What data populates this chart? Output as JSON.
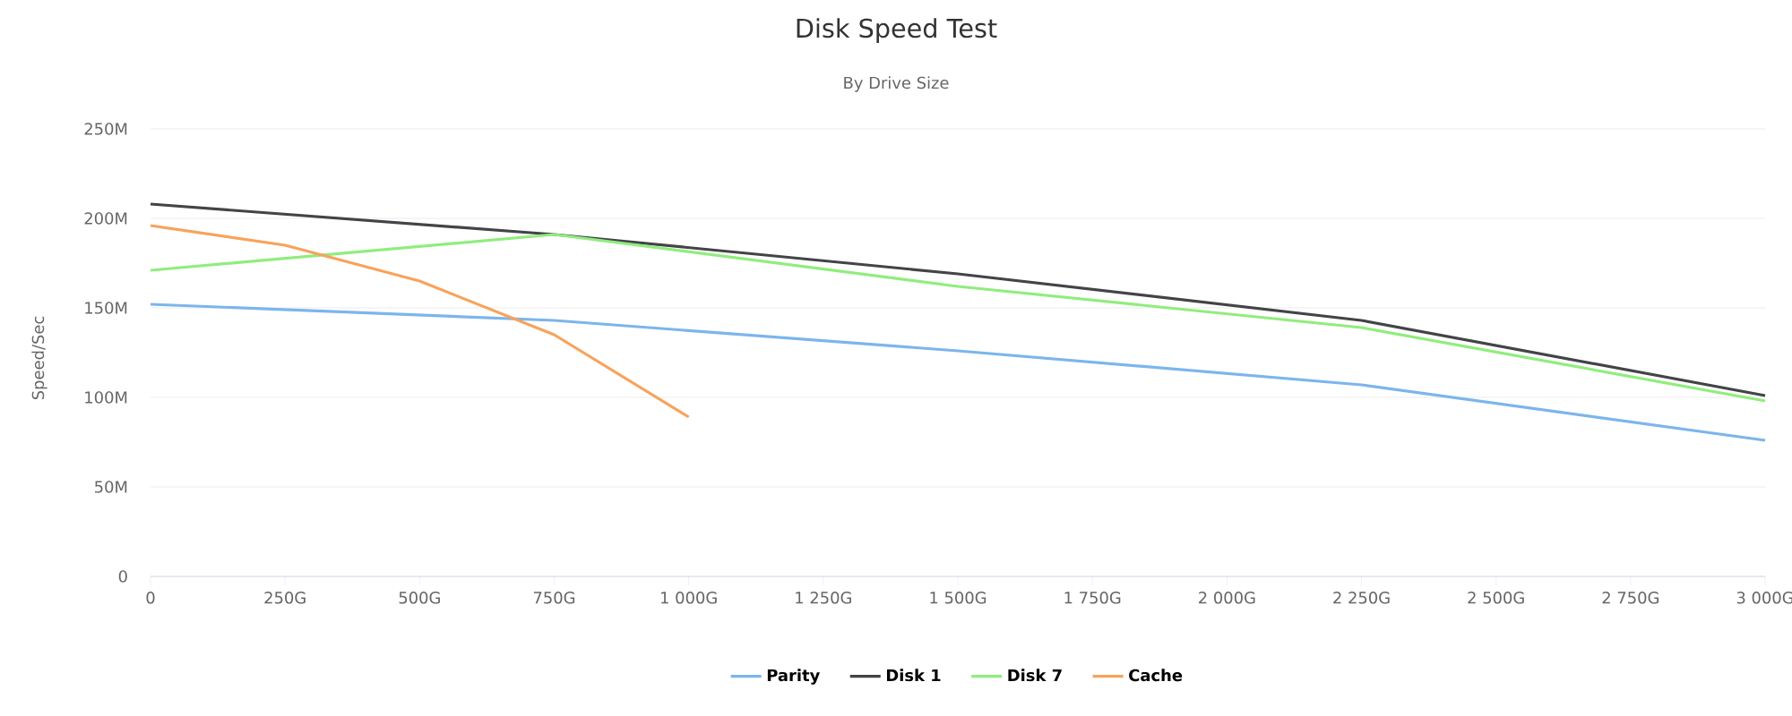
{
  "chart_data": {
    "type": "line",
    "title": "Disk Speed Test",
    "subtitle": "By Drive Size",
    "ylabel": "Speed/Sec",
    "xlim": [
      0,
      3000
    ],
    "xticks": [
      {
        "value": 0,
        "label": "0"
      },
      {
        "value": 250,
        "label": "250G"
      },
      {
        "value": 500,
        "label": "500G"
      },
      {
        "value": 750,
        "label": "750G"
      },
      {
        "value": 1000,
        "label": "1 000G"
      },
      {
        "value": 1250,
        "label": "1 250G"
      },
      {
        "value": 1500,
        "label": "1 500G"
      },
      {
        "value": 1750,
        "label": "1 750G"
      },
      {
        "value": 2000,
        "label": "2 000G"
      },
      {
        "value": 2250,
        "label": "2 250G"
      },
      {
        "value": 2500,
        "label": "2 500G"
      },
      {
        "value": 2750,
        "label": "2 750G"
      },
      {
        "value": 3000,
        "label": "3 000G"
      }
    ],
    "ylim": [
      0,
      250
    ],
    "yticks": [
      {
        "value": 0,
        "label": "0"
      },
      {
        "value": 50,
        "label": "50M"
      },
      {
        "value": 100,
        "label": "100M"
      },
      {
        "value": 150,
        "label": "150M"
      },
      {
        "value": 200,
        "label": "200M"
      },
      {
        "value": 250,
        "label": "250M"
      }
    ],
    "grid": "y",
    "legend": "bottom",
    "series": [
      {
        "name": "Parity",
        "color": "#7cb5ec",
        "x": [
          0,
          750,
          1500,
          2250,
          3000
        ],
        "values": [
          152,
          143,
          126,
          107,
          76
        ]
      },
      {
        "name": "Disk 1",
        "color": "#434348",
        "x": [
          0,
          750,
          1500,
          2250,
          3000
        ],
        "values": [
          208,
          191,
          169,
          143,
          101
        ]
      },
      {
        "name": "Disk 7",
        "color": "#90ed7d",
        "x": [
          0,
          750,
          1500,
          2250,
          3000
        ],
        "values": [
          171,
          191,
          162,
          139,
          98
        ]
      },
      {
        "name": "Cache",
        "color": "#f7a35c",
        "x": [
          0,
          250,
          500,
          750,
          1000
        ],
        "values": [
          196,
          185,
          165,
          135,
          89
        ]
      }
    ]
  }
}
